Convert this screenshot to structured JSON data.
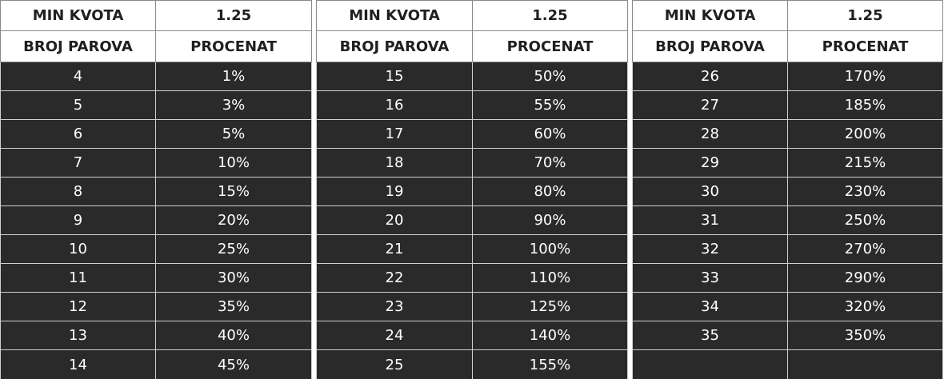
{
  "tables": [
    {
      "header": {
        "kvota_label": "MIN KVOTA",
        "kvota_value": "1.25",
        "col1": "BROJ PAROVA",
        "col2": "PROCENAT"
      },
      "rows": [
        [
          "4",
          "1%"
        ],
        [
          "5",
          "3%"
        ],
        [
          "6",
          "5%"
        ],
        [
          "7",
          "10%"
        ],
        [
          "8",
          "15%"
        ],
        [
          "9",
          "20%"
        ],
        [
          "10",
          "25%"
        ],
        [
          "11",
          "30%"
        ],
        [
          "12",
          "35%"
        ],
        [
          "13",
          "40%"
        ],
        [
          "14",
          "45%"
        ]
      ]
    },
    {
      "header": {
        "kvota_label": "MIN KVOTA",
        "kvota_value": "1.25",
        "col1": "BROJ PAROVA",
        "col2": "PROCENAT"
      },
      "rows": [
        [
          "15",
          "50%"
        ],
        [
          "16",
          "55%"
        ],
        [
          "17",
          "60%"
        ],
        [
          "18",
          "70%"
        ],
        [
          "19",
          "80%"
        ],
        [
          "20",
          "90%"
        ],
        [
          "21",
          "100%"
        ],
        [
          "22",
          "110%"
        ],
        [
          "23",
          "125%"
        ],
        [
          "24",
          "140%"
        ],
        [
          "25",
          "155%"
        ]
      ]
    },
    {
      "header": {
        "kvota_label": "MIN KVOTA",
        "kvota_value": "1.25",
        "col1": "BROJ PAROVA",
        "col2": "PROCENAT"
      },
      "rows": [
        [
          "26",
          "170%"
        ],
        [
          "27",
          "185%"
        ],
        [
          "28",
          "200%"
        ],
        [
          "29",
          "215%"
        ],
        [
          "30",
          "230%"
        ],
        [
          "31",
          "250%"
        ],
        [
          "32",
          "270%"
        ],
        [
          "33",
          "290%"
        ],
        [
          "34",
          "320%"
        ],
        [
          "35",
          "350%"
        ],
        [
          "",
          ""
        ]
      ]
    }
  ],
  "colors": {
    "header_bg": "#ffffff",
    "header_text": "#1f1f1f",
    "body_bg": "#2a2a2a",
    "body_text": "#ffffff"
  }
}
